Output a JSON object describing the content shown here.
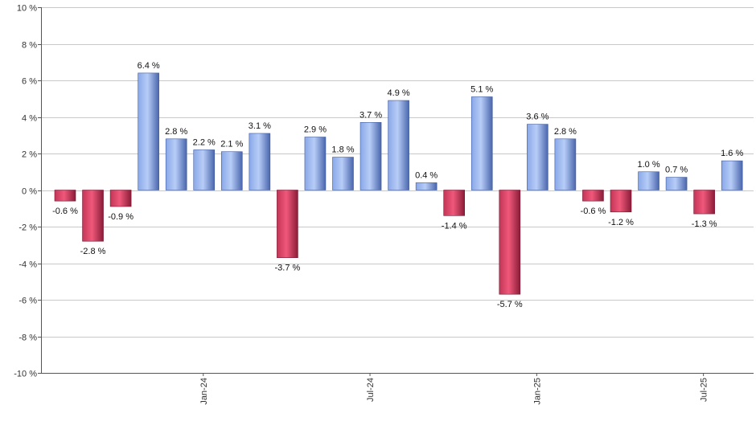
{
  "chart_data": {
    "type": "bar",
    "values": [
      -0.6,
      -2.8,
      -0.9,
      6.4,
      2.8,
      2.2,
      2.1,
      3.1,
      -3.7,
      2.9,
      1.8,
      3.7,
      4.9,
      0.4,
      -1.4,
      5.1,
      -5.7,
      3.6,
      2.8,
      -0.6,
      -1.2,
      1.0,
      0.7,
      -1.3,
      1.6
    ],
    "data_labels": [
      "-0.6 %",
      "-2.8 %",
      "-0.9 %",
      "6.4 %",
      "2.8 %",
      "2.2 %",
      "2.1 %",
      "3.1 %",
      "-3.7 %",
      "2.9 %",
      "1.8 %",
      "3.7 %",
      "4.9 %",
      "0.4 %",
      "-1.4 %",
      "5.1 %",
      "-5.7 %",
      "3.6 %",
      "2.8 %",
      "-0.6 %",
      "-1.2 %",
      "1.0 %",
      "0.7 %",
      "-1.3 %",
      "1.6 %"
    ],
    "x_tick_labels": [
      {
        "label": "Jan-24",
        "index": 5
      },
      {
        "label": "Jul-24",
        "index": 11
      },
      {
        "label": "Jan-25",
        "index": 17
      },
      {
        "label": "Jul-25",
        "index": 23
      }
    ],
    "y_ticks": [
      10,
      8,
      6,
      4,
      2,
      0,
      -2,
      -4,
      -6,
      -8,
      -10
    ],
    "y_tick_labels": [
      "10 %",
      "8 %",
      "6 %",
      "4 %",
      "2 %",
      "0 %",
      "-2 %",
      "-4 %",
      "-6 %",
      "-8 %",
      "-10 %"
    ],
    "ylim": [
      -10,
      10
    ],
    "grid": true,
    "legend": false,
    "colors": {
      "positive_light": "#a9c2f2",
      "positive_dark": "#4d6cb4",
      "negative_light": "#f0587a",
      "negative_dark": "#8c1e3a",
      "grid": "#c8c8c8",
      "axis": "#555555"
    }
  }
}
